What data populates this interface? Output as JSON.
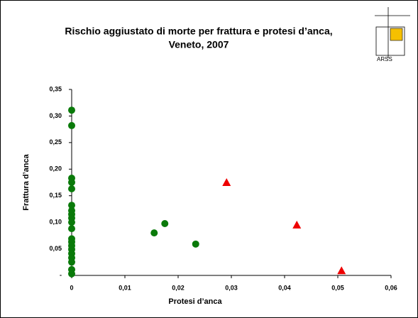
{
  "logo": {
    "text": "ARSS"
  },
  "chart_data": {
    "type": "scatter",
    "title": "Rischio aggiustato di morte per frattura e protesi d’anca,",
    "subtitle": "Veneto, 2007",
    "x_label": "Protesi d’anca",
    "y_label": "Frattura d’anca",
    "xlim": [
      0,
      0.06
    ],
    "xticks": [
      0,
      {
        "value": 0.01,
        "label": "0,01"
      },
      {
        "value": 0.02,
        "label": "0,02"
      },
      {
        "value": 0.03,
        "label": "0,03"
      },
      {
        "value": 0.04,
        "label": "0,04"
      },
      {
        "value": 0.05,
        "label": "0,05"
      },
      {
        "value": 0.06,
        "label": "0,06"
      }
    ],
    "ylim": [
      0,
      0.35
    ],
    "yticks": [
      {
        "value": 0,
        "label": "-"
      },
      {
        "value": 0.05,
        "label": "0,05"
      },
      {
        "value": 0.1,
        "label": "0,10"
      },
      {
        "value": 0.15,
        "label": "0,15"
      },
      {
        "value": 0.2,
        "label": "0,20"
      },
      {
        "value": 0.25,
        "label": "0,25"
      },
      {
        "value": 0.3,
        "label": "0,30"
      },
      {
        "value": 0.35,
        "label": "0,35"
      }
    ],
    "series": [
      {
        "color": "#0a7a0a",
        "marker": "circle",
        "x": [
          0,
          0,
          0,
          0,
          0,
          0,
          0,
          0,
          0,
          0,
          0,
          0,
          0,
          0,
          0,
          0,
          0,
          0,
          0,
          0,
          0.0155,
          0.0175,
          0.0233
        ],
        "values": [
          0.311,
          0.282,
          0.183,
          0.175,
          0.163,
          0.132,
          0.122,
          0.115,
          0.108,
          0.1,
          0.088,
          0.069,
          0.063,
          0.056,
          0.049,
          0.041,
          0.033,
          0.025,
          0.011,
          0.003,
          0.08,
          0.0975,
          0.059
        ]
      },
      {
        "color": "#ee0000",
        "marker": "triangle",
        "x": [
          0.0291,
          0.0423,
          0.0507
        ],
        "values": [
          0.175,
          0.095,
          0.009
        ]
      }
    ]
  }
}
